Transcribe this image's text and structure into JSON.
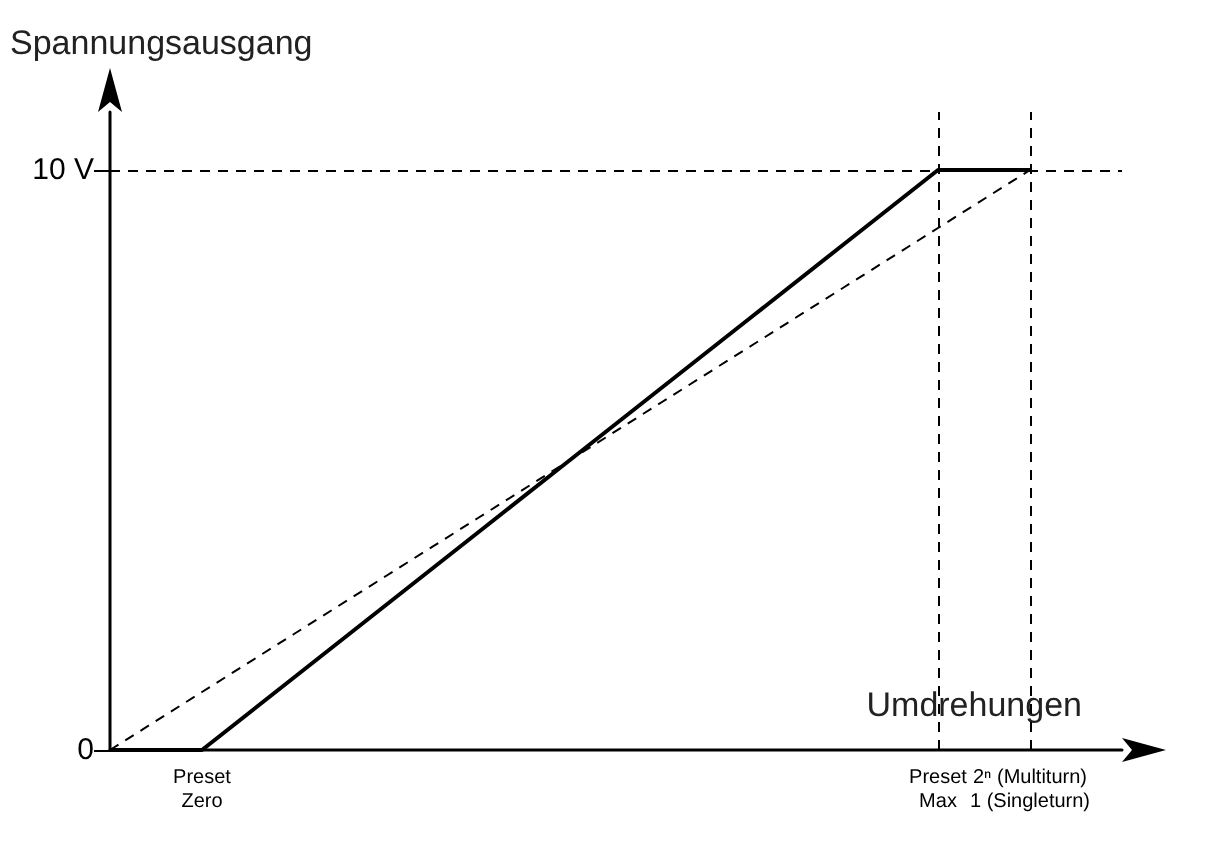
{
  "chart_data": {
    "type": "line",
    "xlabel": "Umdrehungen",
    "ylabel": "Spannungsausgang",
    "categories": [
      null,
      "Preset\nZero",
      null,
      null,
      null,
      null,
      null,
      null,
      null,
      "Preset\nMax",
      "2ⁿ (Multiturn)\n1 (Singleturn)",
      null
    ],
    "ylim": [
      0,
      11
    ],
    "yticks": [
      0,
      {
        "value": 10,
        "label": "10 V"
      }
    ],
    "series": [
      {
        "color": "#000000",
        "values": [
          0,
          0,
          1.25,
          2.5,
          3.75,
          5,
          6.25,
          7.5,
          8.75,
          10,
          10,
          null
        ],
        "line_style": "solid"
      },
      {
        "color": "#000000",
        "values": [
          0,
          1,
          2,
          3,
          4,
          5,
          6,
          7,
          8,
          9,
          10,
          null
        ],
        "line_style": "dashed"
      }
    ],
    "ref_lines": [
      {
        "axis": "y",
        "value": 10,
        "line_style": "dashed",
        "color": "#000000"
      },
      {
        "axis": "x",
        "value": "Preset\nMax",
        "line_style": "dashed",
        "color": "#000000"
      },
      {
        "axis": "x",
        "value": "2ⁿ (Multiturn)\n1 (Singleturn)",
        "line_style": "dashed",
        "color": "#000000"
      }
    ],
    "marker": "none"
  }
}
